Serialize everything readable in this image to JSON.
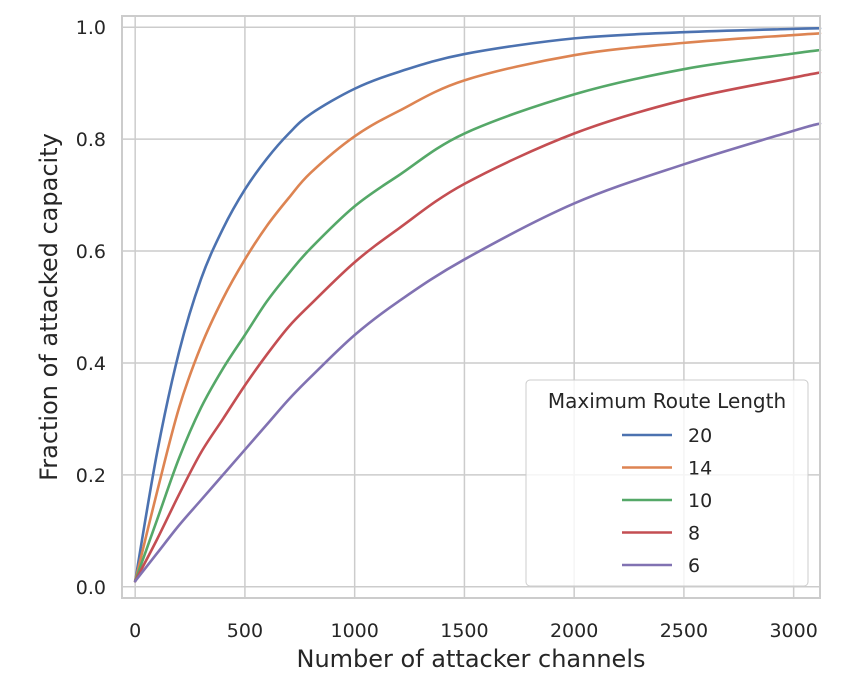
{
  "chart_data": {
    "type": "line",
    "xlabel": "Number of attacker channels",
    "ylabel": "Fraction of attacked capacity",
    "xlim": [
      -60,
      3120
    ],
    "ylim": [
      -0.02,
      1.02
    ],
    "x_ticks": [
      0,
      500,
      1000,
      1500,
      2000,
      2500,
      3000
    ],
    "y_ticks": [
      0.0,
      0.2,
      0.4,
      0.6,
      0.8,
      1.0
    ],
    "x_tick_labels": [
      "0",
      "500",
      "1000",
      "1500",
      "2000",
      "2500",
      "3000"
    ],
    "y_tick_labels": [
      "0.0",
      "0.2",
      "0.4",
      "0.6",
      "0.8",
      "1.0"
    ],
    "grid": true,
    "legend": {
      "title": "Maximum Route Length",
      "position": "lower-right"
    },
    "series": [
      {
        "name": "20",
        "color": "#4c72b0",
        "x": [
          0,
          100,
          200,
          300,
          400,
          500,
          600,
          700,
          800,
          1000,
          1200,
          1500,
          2000,
          2500,
          3000,
          3120
        ],
        "y": [
          0.01,
          0.24,
          0.42,
          0.55,
          0.64,
          0.71,
          0.765,
          0.81,
          0.845,
          0.89,
          0.92,
          0.952,
          0.98,
          0.991,
          0.997,
          0.998
        ]
      },
      {
        "name": "14",
        "color": "#dd8452",
        "x": [
          0,
          100,
          200,
          300,
          400,
          500,
          600,
          700,
          800,
          1000,
          1200,
          1500,
          2000,
          2500,
          3000,
          3120
        ],
        "y": [
          0.01,
          0.17,
          0.32,
          0.43,
          0.515,
          0.585,
          0.645,
          0.695,
          0.74,
          0.805,
          0.85,
          0.905,
          0.95,
          0.972,
          0.986,
          0.989
        ]
      },
      {
        "name": "10",
        "color": "#55a868",
        "x": [
          0,
          100,
          200,
          300,
          400,
          500,
          600,
          700,
          800,
          1000,
          1200,
          1500,
          2000,
          2500,
          3000,
          3120
        ],
        "y": [
          0.01,
          0.12,
          0.23,
          0.32,
          0.39,
          0.45,
          0.51,
          0.56,
          0.605,
          0.68,
          0.735,
          0.81,
          0.88,
          0.925,
          0.953,
          0.959
        ]
      },
      {
        "name": "8",
        "color": "#c44e52",
        "x": [
          0,
          100,
          200,
          300,
          400,
          500,
          600,
          700,
          800,
          1000,
          1200,
          1500,
          2000,
          2500,
          3000,
          3120
        ],
        "y": [
          0.01,
          0.085,
          0.165,
          0.24,
          0.3,
          0.36,
          0.415,
          0.465,
          0.505,
          0.58,
          0.64,
          0.72,
          0.81,
          0.87,
          0.91,
          0.919
        ]
      },
      {
        "name": "6",
        "color": "#8172b2",
        "x": [
          0,
          100,
          200,
          300,
          400,
          500,
          600,
          700,
          800,
          1000,
          1200,
          1500,
          2000,
          2500,
          3000,
          3120
        ],
        "y": [
          0.01,
          0.06,
          0.11,
          0.155,
          0.2,
          0.245,
          0.29,
          0.335,
          0.375,
          0.45,
          0.51,
          0.585,
          0.685,
          0.755,
          0.815,
          0.828
        ]
      }
    ]
  }
}
